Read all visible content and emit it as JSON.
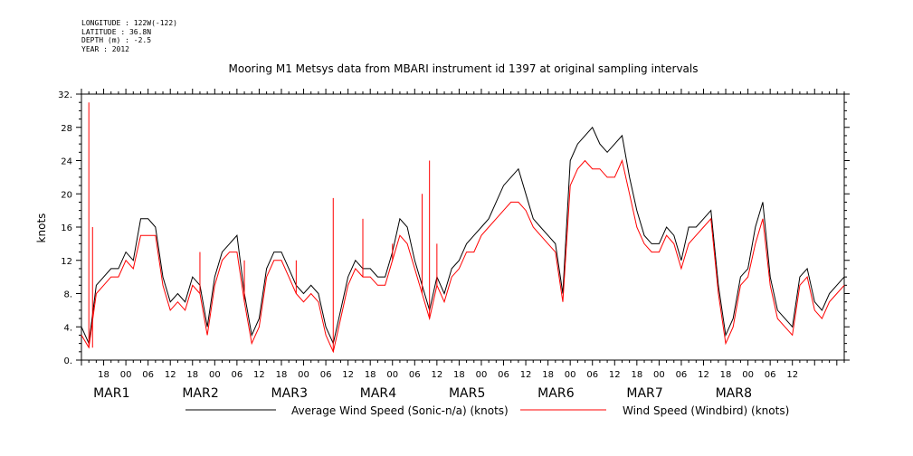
{
  "meta": {
    "longitude": "LONGITUDE : 122W(-122)",
    "latitude": "LATITUDE : 36.8N",
    "depth": "DEPTH (m) : -2.5",
    "year": "YEAR : 2012"
  },
  "chart_data": {
    "type": "line",
    "title": "Mooring M1 Metsys data from MBARI instrument id 1397 at original sampling intervals",
    "ylabel": "knots",
    "xlabel": "",
    "ylim": [
      0,
      32
    ],
    "xlim_hours": [
      12,
      218
    ],
    "yticks": [
      "0.",
      "4.",
      "8.",
      "12",
      "16",
      "20",
      "24",
      "28",
      "32."
    ],
    "hour_tick_labels": [
      "18",
      "00",
      "06",
      "12",
      "18",
      "00",
      "06",
      "12",
      "18",
      "00",
      "06",
      "12",
      "18",
      "00",
      "06",
      "12",
      "18",
      "00",
      "06",
      "12",
      "18",
      "00",
      "06",
      "12",
      "18",
      "00",
      "06",
      "12",
      "18",
      "00",
      "06",
      "12"
    ],
    "day_labels": [
      {
        "month": "MAR",
        "day": "1"
      },
      {
        "month": "MAR",
        "day": "2"
      },
      {
        "month": "MAR",
        "day": "3"
      },
      {
        "month": "MAR",
        "day": "4"
      },
      {
        "month": "MAR",
        "day": "5"
      },
      {
        "month": "MAR",
        "day": "6"
      },
      {
        "month": "MAR",
        "day": "7"
      },
      {
        "month": "MAR",
        "day": "8"
      }
    ],
    "series": [
      {
        "name": "Average Wind Speed (Sonic-n/a) (knots)",
        "color": "#000000",
        "x_hours": [
          12,
          14,
          16,
          18,
          20,
          22,
          24,
          26,
          28,
          30,
          32,
          34,
          36,
          38,
          40,
          42,
          44,
          46,
          48,
          50,
          52,
          54,
          56,
          58,
          60,
          62,
          64,
          66,
          68,
          70,
          72,
          74,
          76,
          78,
          80,
          82,
          84,
          86,
          88,
          90,
          92,
          94,
          96,
          98,
          100,
          102,
          104,
          106,
          108,
          110,
          112,
          114,
          116,
          118,
          120,
          122,
          124,
          126,
          128,
          130,
          132,
          134,
          136,
          138,
          140,
          142,
          144,
          146,
          148,
          150,
          152,
          154,
          156,
          158,
          160,
          162,
          164,
          166,
          168,
          170,
          172,
          174,
          176,
          178,
          180,
          182,
          184,
          186,
          188,
          190,
          192,
          194,
          196,
          198,
          200,
          202,
          204,
          206,
          208,
          210,
          212,
          214,
          216,
          218
        ],
        "values": [
          4,
          2,
          9,
          10,
          11,
          11,
          13,
          12,
          17,
          17,
          16,
          10,
          7,
          8,
          7,
          10,
          9,
          4,
          10,
          13,
          14,
          15,
          8,
          3,
          5,
          11,
          13,
          13,
          11,
          9,
          8,
          9,
          8,
          4,
          2,
          6,
          10,
          12,
          11,
          11,
          10,
          10,
          13,
          17,
          16,
          12,
          9,
          6,
          10,
          8,
          11,
          12,
          14,
          15,
          16,
          17,
          19,
          21,
          22,
          23,
          20,
          17,
          16,
          15,
          14,
          8,
          24,
          26,
          27,
          28,
          26,
          25,
          26,
          27,
          22,
          18,
          15,
          14,
          14,
          16,
          15,
          12,
          16,
          16,
          17,
          18,
          9,
          3,
          5,
          10,
          11,
          16,
          19,
          10,
          6,
          5,
          4,
          10,
          11,
          7,
          6,
          8,
          9,
          10
        ]
      },
      {
        "name": "Wind Speed (Windbird) (knots)",
        "color": "#ff0000",
        "x_hours": [
          12,
          14,
          16,
          18,
          20,
          22,
          24,
          26,
          28,
          30,
          32,
          34,
          36,
          38,
          40,
          42,
          44,
          46,
          48,
          50,
          52,
          54,
          56,
          58,
          60,
          62,
          64,
          66,
          68,
          70,
          72,
          74,
          76,
          78,
          80,
          82,
          84,
          86,
          88,
          90,
          92,
          94,
          96,
          98,
          100,
          102,
          104,
          106,
          108,
          110,
          112,
          114,
          116,
          118,
          120,
          122,
          124,
          126,
          128,
          130,
          132,
          134,
          136,
          138,
          140,
          142,
          144,
          146,
          148,
          150,
          152,
          154,
          156,
          158,
          160,
          162,
          164,
          166,
          168,
          170,
          172,
          174,
          176,
          178,
          180,
          182,
          184,
          186,
          188,
          190,
          192,
          194,
          196,
          198,
          200,
          202,
          204,
          206,
          208,
          210,
          212,
          214,
          216,
          218
        ],
        "values": [
          3,
          1.5,
          8,
          9,
          10,
          10,
          12,
          11,
          15,
          15,
          15,
          9,
          6,
          7,
          6,
          9,
          8,
          3,
          9,
          12,
          13,
          13,
          7,
          2,
          4,
          10,
          12,
          12,
          10,
          8,
          7,
          8,
          7,
          3,
          1,
          5,
          9,
          11,
          10,
          10,
          9,
          9,
          12,
          15,
          14,
          11,
          8,
          5,
          9,
          7,
          10,
          11,
          13,
          13,
          15,
          16,
          17,
          18,
          19,
          19,
          18,
          16,
          15,
          14,
          13,
          7,
          21,
          23,
          24,
          23,
          23,
          22,
          22,
          24,
          20,
          16,
          14,
          13,
          13,
          15,
          14,
          11,
          14,
          15,
          16,
          17,
          8,
          2,
          4,
          9,
          10,
          14,
          17,
          9,
          5,
          4,
          3,
          9,
          10,
          6,
          5,
          7,
          8,
          9
        ]
      }
    ],
    "spikes": {
      "color": "#ff0000",
      "x_hours": [
        14,
        15,
        44,
        56,
        70,
        80,
        88,
        96,
        104,
        106,
        108
      ],
      "values": [
        31,
        16,
        13,
        12,
        12,
        19.5,
        17,
        14,
        20,
        24,
        14
      ]
    },
    "legend_placement": "bottom-center",
    "grid": false
  }
}
